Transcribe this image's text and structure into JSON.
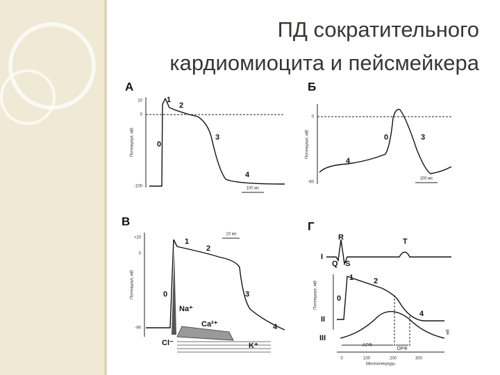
{
  "title": {
    "line1": "ПД сократительного",
    "line2": "кардиомиоцита и пейсмейкера"
  },
  "panel_a": {
    "label": "А",
    "y_axis": "Потенциал, мВ",
    "ticks": [
      "20",
      "0",
      "-100"
    ],
    "phases": [
      "1",
      "2",
      "0",
      "3",
      "4"
    ],
    "scale": "100 мс"
  },
  "panel_b": {
    "label": "Б",
    "y_axis": "Потенциал, мВ",
    "ticks": [
      "0",
      "-60"
    ],
    "phases": [
      "0",
      "3",
      "4"
    ],
    "scale": "100 мс"
  },
  "panel_c": {
    "label": "В",
    "y_axis": "Потенциал, мВ",
    "ticks": [
      "+20",
      "0",
      "-90"
    ],
    "phases": [
      "1",
      "2",
      "0",
      "3",
      "4"
    ],
    "ions": [
      "Na⁺",
      "Ca²⁺",
      "Cl⁻",
      "K⁺"
    ],
    "scale": "10 мс"
  },
  "panel_d": {
    "label": "Г",
    "ecg": [
      "R",
      "T",
      "Q",
      "S"
    ],
    "rows": [
      "I",
      "II",
      "III"
    ],
    "phases": [
      "1",
      "2",
      "0",
      "4"
    ],
    "periods": [
      "АРФ",
      "ОРФ"
    ],
    "x_ticks": [
      "0",
      "100",
      "200",
      "300"
    ],
    "x_axis": "Миллисекунды",
    "y_axis": "Потенциал, мВ",
    "unit": "мВ"
  }
}
